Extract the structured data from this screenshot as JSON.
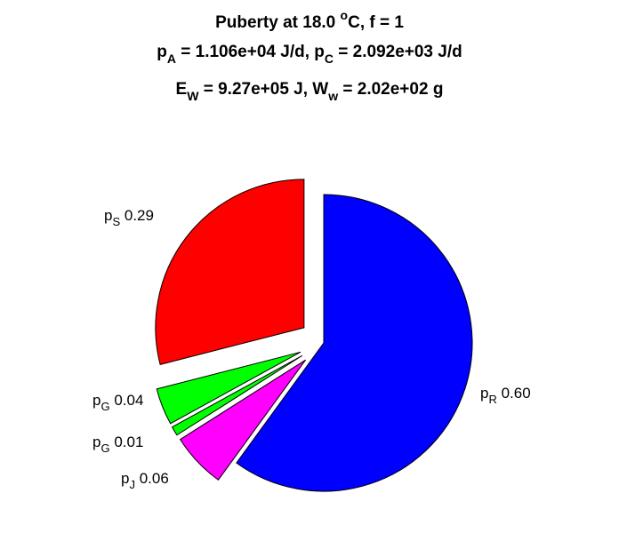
{
  "chart_data": {
    "type": "pie",
    "exploded": true,
    "title_lines": [
      {
        "parts": [
          {
            "t": "Puberty at 18.0 "
          },
          {
            "t": "o",
            "sup": true
          },
          {
            "t": "C, f = 1"
          }
        ]
      },
      {
        "parts": [
          {
            "t": "p"
          },
          {
            "t": "A",
            "sub": true
          },
          {
            "t": " = 1.106e+04 J/d,  p"
          },
          {
            "t": "C",
            "sub": true
          },
          {
            "t": " = 2.092e+03 J/d"
          }
        ]
      },
      {
        "parts": [
          {
            "t": "E"
          },
          {
            "t": "W",
            "sub": true
          },
          {
            "t": " = 9.27e+05 J, W"
          },
          {
            "t": "w",
            "sub": true
          },
          {
            "t": " = 2.02e+02 g"
          }
        ]
      }
    ],
    "slices": [
      {
        "name": "p",
        "sub": "R",
        "value": 0.6,
        "label": "0.60",
        "color": "#0000ff"
      },
      {
        "name": "p",
        "sub": "J",
        "value": 0.06,
        "label": "0.06",
        "color": "#ff00ff"
      },
      {
        "name": "p",
        "sub": "G",
        "value": 0.01,
        "label": "0.01",
        "color": "#00ff00"
      },
      {
        "name": "p",
        "sub": "G",
        "value": 0.04,
        "label": "0.04",
        "color": "#00ff00"
      },
      {
        "name": "p",
        "sub": "S",
        "value": 0.29,
        "label": "0.29",
        "color": "#ff0000"
      }
    ]
  }
}
